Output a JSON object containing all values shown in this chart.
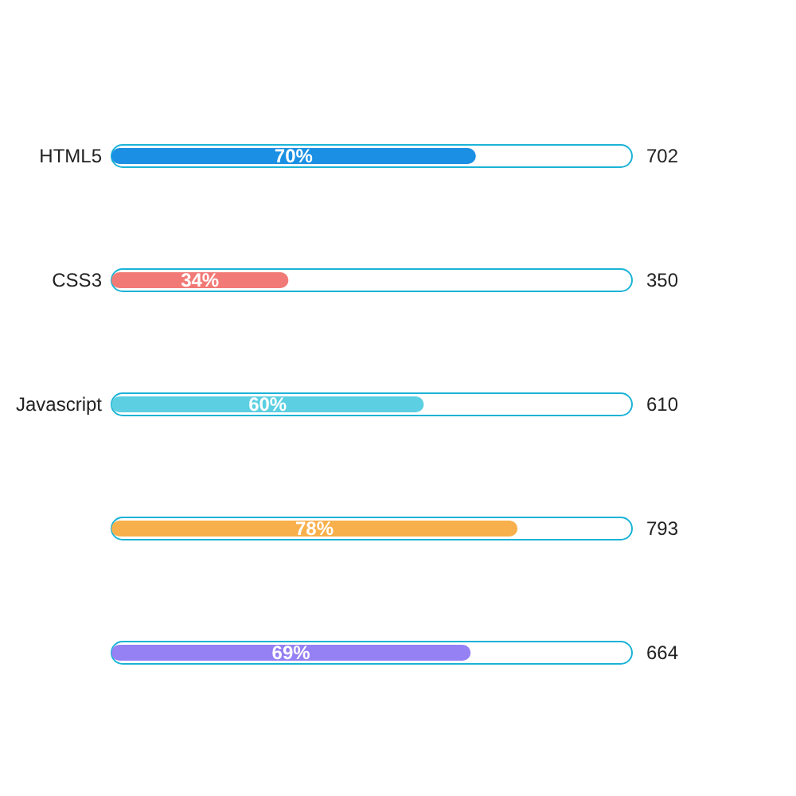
{
  "chart_data": {
    "type": "bar",
    "orientation": "horizontal",
    "categories": [
      "HTML5",
      "CSS3",
      "Javascript",
      null,
      null
    ],
    "series": [
      {
        "color": "#1bb3d6",
        "values": [
          100,
          100,
          100,
          100,
          100
        ]
      },
      {
        "colors": [
          "#1a8fe3",
          "#f27a76",
          "#5ccfe2",
          "#f8b04c",
          "#9580f4"
        ],
        "values": [
          70,
          34,
          60,
          78,
          69
        ],
        "value_labels": [
          "70%",
          "34%",
          "60%",
          "78%",
          "69%"
        ]
      }
    ],
    "y2_categories": [
      "702",
      "350",
      "610",
      "793",
      "664"
    ],
    "xlim": [
      0,
      100
    ]
  }
}
